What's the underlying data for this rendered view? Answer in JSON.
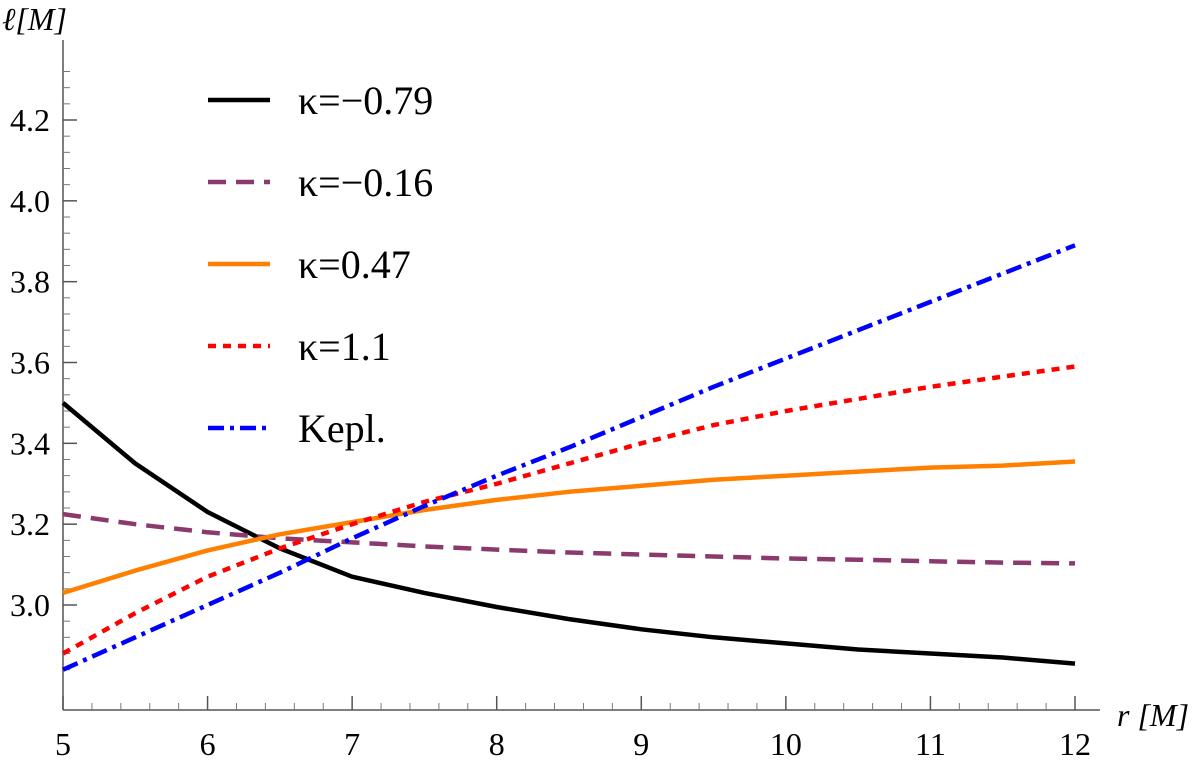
{
  "chart_data": {
    "type": "line",
    "xlabel": "r [M]",
    "ylabel": "ℓ[M]",
    "xlim": [
      5,
      12
    ],
    "ylim": [
      2.8,
      4.35
    ],
    "xticks": [
      "5",
      "6",
      "7",
      "8",
      "9",
      "10",
      "11",
      "12"
    ],
    "yticks": [
      "3.0",
      "3.2",
      "3.4",
      "3.6",
      "3.8",
      "4.0",
      "4.2"
    ],
    "legend_position": "top-left",
    "grid": false,
    "series": [
      {
        "name": "κ=−0.79",
        "color": "#000000",
        "dash": "solid",
        "x": [
          5,
          5.5,
          6,
          6.5,
          7,
          7.5,
          8,
          8.5,
          9,
          9.5,
          10,
          10.5,
          11,
          11.5,
          12
        ],
        "y": [
          3.5,
          3.35,
          3.23,
          3.14,
          3.07,
          3.03,
          2.995,
          2.965,
          2.94,
          2.92,
          2.905,
          2.89,
          2.88,
          2.87,
          2.855
        ]
      },
      {
        "name": "κ=−0.16",
        "color": "#8b3a6e",
        "dash": "dashed",
        "x": [
          5,
          5.5,
          6,
          6.5,
          7,
          7.5,
          8,
          8.5,
          9,
          9.5,
          10,
          10.5,
          11,
          11.5,
          12
        ],
        "y": [
          3.225,
          3.2,
          3.18,
          3.165,
          3.155,
          3.145,
          3.137,
          3.13,
          3.125,
          3.12,
          3.115,
          3.112,
          3.108,
          3.105,
          3.103
        ]
      },
      {
        "name": "κ=0.47",
        "color": "#ff8000",
        "dash": "solid",
        "x": [
          5,
          5.5,
          6,
          6.5,
          7,
          7.5,
          8,
          8.5,
          9,
          9.5,
          10,
          10.5,
          11,
          11.5,
          12
        ],
        "y": [
          3.03,
          3.085,
          3.135,
          3.175,
          3.205,
          3.235,
          3.26,
          3.28,
          3.295,
          3.31,
          3.32,
          3.33,
          3.34,
          3.345,
          3.355
        ]
      },
      {
        "name": "κ=1.1",
        "color": "#ff0000",
        "dash": "dotted",
        "x": [
          5,
          5.5,
          6,
          6.5,
          7,
          7.5,
          8,
          8.5,
          9,
          9.5,
          10,
          10.5,
          11,
          11.5,
          12
        ],
        "y": [
          2.88,
          2.98,
          3.07,
          3.14,
          3.2,
          3.255,
          3.3,
          3.35,
          3.4,
          3.445,
          3.48,
          3.51,
          3.54,
          3.565,
          3.59
        ]
      },
      {
        "name": "Kepl.",
        "color": "#0000ff",
        "dash": "dashdot",
        "x": [
          5,
          5.5,
          6,
          6.5,
          7,
          7.5,
          8,
          8.5,
          9,
          9.5,
          10,
          10.5,
          11,
          11.5,
          12
        ],
        "y": [
          2.84,
          2.92,
          3.0,
          3.08,
          3.165,
          3.245,
          3.32,
          3.39,
          3.465,
          3.54,
          3.61,
          3.68,
          3.75,
          3.82,
          3.89
        ]
      }
    ]
  }
}
